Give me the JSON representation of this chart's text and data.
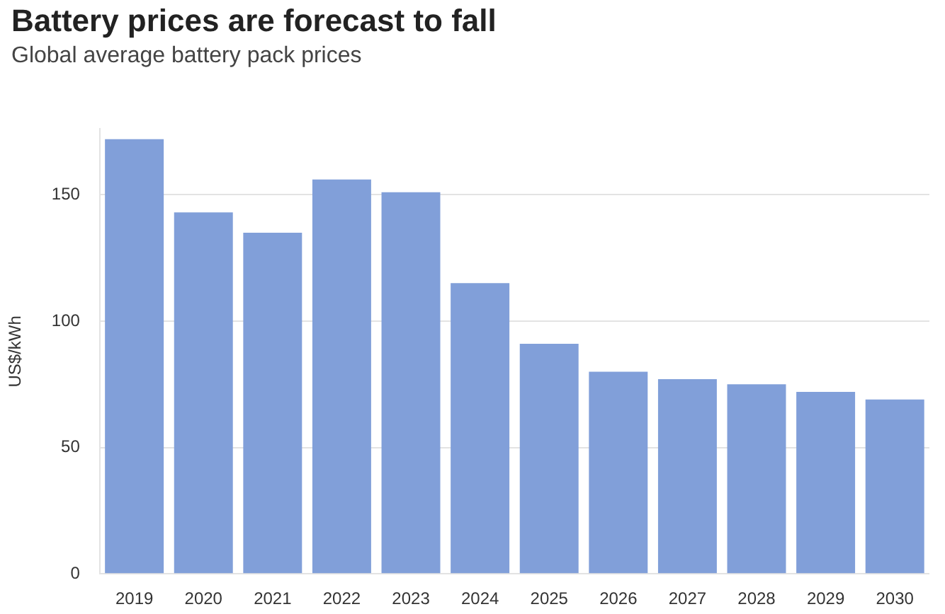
{
  "chart_data": {
    "type": "bar",
    "title": "Battery prices are forecast to fall",
    "subtitle": "Global average battery pack prices",
    "ylabel": "US$/kWh",
    "categories": [
      "2019",
      "2020",
      "2021",
      "2022",
      "2023",
      "2024",
      "2025",
      "2026",
      "2027",
      "2028",
      "2029",
      "2030"
    ],
    "values": [
      172,
      143,
      135,
      156,
      151,
      115,
      91,
      80,
      77,
      75,
      72,
      69
    ],
    "color": "#819fd9",
    "ylim": [
      0,
      176
    ],
    "yticks": [
      0,
      50,
      100,
      150
    ],
    "grid": "y"
  }
}
